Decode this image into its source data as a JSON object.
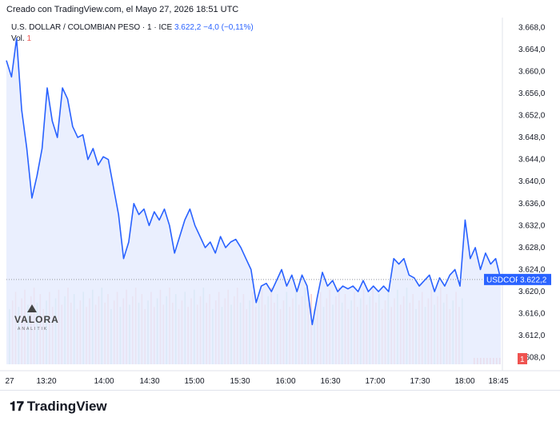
{
  "header": {
    "created": "Creado con TradingView.com, el Mayo 27, 2026 18:51 UTC",
    "symbol": "U.S. DOLLAR / COLOMBIAN PESO · 1 · ICE",
    "price": "3.622,2",
    "change": "−4,0 (−0,11%)",
    "vol_label": "Vol.",
    "vol_value": "1"
  },
  "watermark": {
    "name": "VALORA",
    "sub": "ANALITIK"
  },
  "footer": {
    "brand": "TradingView",
    "logo_icon": "tradingview-logo-icon"
  },
  "colors": {
    "line": "#2962ff",
    "area": "#e3eafd",
    "vol_up": "#26a69a",
    "vol_down": "#ef5350",
    "badge": "#2962ff"
  },
  "chart_data": {
    "type": "line",
    "series_label": "USDCOP",
    "last_value_label": "3.622,2",
    "vol_badge": "1",
    "last_value": 3622.2,
    "y_ticks": [
      "3.668,0",
      "3.664,0",
      "3.660,0",
      "3.656,0",
      "3.652,0",
      "3.648,0",
      "3.644,0",
      "3.640,0",
      "3.636,0",
      "3.632,0",
      "3.628,0",
      "3.624,0",
      "3.620,0",
      "3.616,0",
      "3.612,0",
      "3.608,0"
    ],
    "ylim": [
      3606.5,
      3669.5
    ],
    "x_ticks": [
      "27",
      "13:20",
      "14:00",
      "14:30",
      "15:00",
      "15:30",
      "16:00",
      "16:30",
      "17:00",
      "17:30",
      "18:00",
      "18:45"
    ],
    "points": [
      [
        0,
        3662.0
      ],
      [
        1,
        3659.0
      ],
      [
        2,
        3666.0
      ],
      [
        3,
        3653.0
      ],
      [
        4,
        3646.0
      ],
      [
        5,
        3637.0
      ],
      [
        6,
        3641.0
      ],
      [
        7,
        3646.0
      ],
      [
        8,
        3657.0
      ],
      [
        9,
        3651.0
      ],
      [
        10,
        3648.0
      ],
      [
        11,
        3657.0
      ],
      [
        12,
        3655.0
      ],
      [
        13,
        3650.0
      ],
      [
        14,
        3648.0
      ],
      [
        15,
        3648.5
      ],
      [
        16,
        3644.0
      ],
      [
        17,
        3646.0
      ],
      [
        18,
        3643.0
      ],
      [
        19,
        3644.5
      ],
      [
        20,
        3644.0
      ],
      [
        21,
        3639.0
      ],
      [
        22,
        3634.0
      ],
      [
        23,
        3626.0
      ],
      [
        24,
        3629.0
      ],
      [
        25,
        3636.0
      ],
      [
        26,
        3634.0
      ],
      [
        27,
        3635.0
      ],
      [
        28,
        3632.0
      ],
      [
        29,
        3634.5
      ],
      [
        30,
        3633.0
      ],
      [
        31,
        3635.0
      ],
      [
        32,
        3632.0
      ],
      [
        33,
        3627.0
      ],
      [
        34,
        3630.0
      ],
      [
        35,
        3633.0
      ],
      [
        36,
        3635.0
      ],
      [
        37,
        3632.0
      ],
      [
        38,
        3630.0
      ],
      [
        39,
        3628.0
      ],
      [
        40,
        3629.0
      ],
      [
        41,
        3627.0
      ],
      [
        42,
        3630.0
      ],
      [
        43,
        3628.0
      ],
      [
        44,
        3629.0
      ],
      [
        45,
        3629.5
      ],
      [
        46,
        3628.0
      ],
      [
        47,
        3626.0
      ],
      [
        48,
        3624.0
      ],
      [
        49,
        3618.0
      ],
      [
        50,
        3621.0
      ],
      [
        51,
        3621.5
      ],
      [
        52,
        3620.0
      ],
      [
        53,
        3622.0
      ],
      [
        54,
        3624.0
      ],
      [
        55,
        3621.0
      ],
      [
        56,
        3623.0
      ],
      [
        57,
        3620.0
      ],
      [
        58,
        3623.0
      ],
      [
        59,
        3621.0
      ],
      [
        60,
        3614.0
      ],
      [
        61,
        3619.0
      ],
      [
        62,
        3623.5
      ],
      [
        63,
        3621.0
      ],
      [
        64,
        3622.0
      ],
      [
        65,
        3620.0
      ],
      [
        66,
        3621.0
      ],
      [
        67,
        3620.5
      ],
      [
        68,
        3621.0
      ],
      [
        69,
        3620.0
      ],
      [
        70,
        3622.0
      ],
      [
        71,
        3620.0
      ],
      [
        72,
        3621.0
      ],
      [
        73,
        3620.0
      ],
      [
        74,
        3621.0
      ],
      [
        75,
        3620.0
      ],
      [
        76,
        3626.0
      ],
      [
        77,
        3625.0
      ],
      [
        78,
        3626.0
      ],
      [
        79,
        3623.0
      ],
      [
        80,
        3622.5
      ],
      [
        81,
        3621.0
      ],
      [
        82,
        3622.0
      ],
      [
        83,
        3623.0
      ],
      [
        84,
        3620.0
      ],
      [
        85,
        3622.5
      ],
      [
        86,
        3621.0
      ],
      [
        87,
        3623.0
      ],
      [
        88,
        3624.0
      ],
      [
        89,
        3621.0
      ],
      [
        90,
        3633.0
      ],
      [
        91,
        3626.0
      ],
      [
        92,
        3628.0
      ],
      [
        93,
        3624.0
      ],
      [
        94,
        3627.0
      ],
      [
        95,
        3625.0
      ],
      [
        96,
        3626.0
      ],
      [
        97,
        3622.2
      ]
    ],
    "volume_note": "flat, high bars until 18:00"
  }
}
